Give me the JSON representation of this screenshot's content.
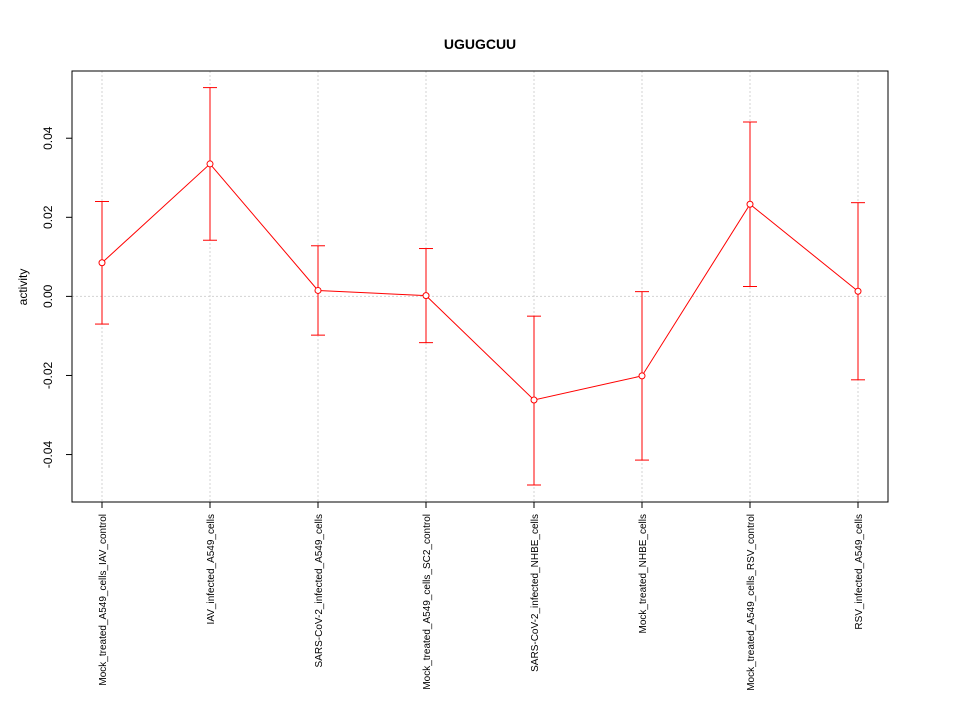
{
  "chart_data": {
    "type": "line",
    "title": "UGUGCUU",
    "xlabel": "",
    "ylabel": "activity",
    "ylim": [
      -0.052,
      0.057
    ],
    "yticks": [
      -0.04,
      -0.02,
      0.0,
      0.02,
      0.04
    ],
    "ytick_labels": [
      "-0.04",
      "-0.02",
      "0.00",
      "0.02",
      "0.04"
    ],
    "grid": true,
    "categories": [
      "Mock_treated_A549_cells_IAV_control",
      "IAV_infected_A549_cells",
      "SARS-CoV-2_infected_A549_cells",
      "Mock_treated_A549_cells_SC2_control",
      "SARS-CoV-2_infected_NHBE_cells",
      "Mock_treated_NHBE_cells",
      "Mock_treated_A549_cells_RSV_control",
      "RSV_infected_A549_cells"
    ],
    "series": [
      {
        "color": "#ff0000",
        "values": [
          0.0085,
          0.0335,
          0.0015,
          0.0002,
          -0.0262,
          -0.0201,
          0.0233,
          0.0013
        ],
        "err_low": [
          -0.007,
          0.0142,
          -0.0098,
          -0.0117,
          -0.0477,
          -0.0414,
          0.0025,
          -0.0211
        ],
        "err_high": [
          0.024,
          0.0528,
          0.0128,
          0.0121,
          -0.005,
          0.0012,
          0.0441,
          0.0237
        ]
      }
    ]
  }
}
